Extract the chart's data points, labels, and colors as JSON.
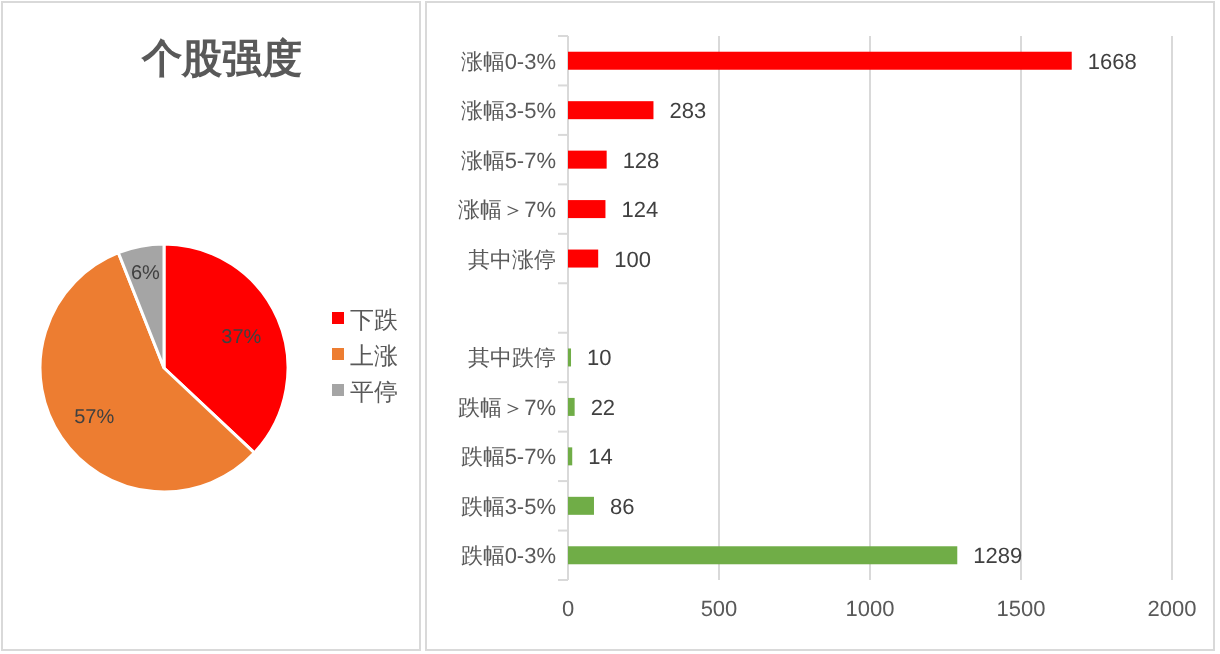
{
  "chart_data": [
    {
      "type": "pie",
      "title": "个股强度",
      "categories": [
        "下跌",
        "上涨",
        "平停"
      ],
      "values": [
        37,
        57,
        6
      ],
      "colors": [
        "#ff0000",
        "#ed7d31",
        "#a5a5a5"
      ],
      "value_labels": [
        "37%",
        "57%",
        "6%"
      ],
      "legend": "right"
    },
    {
      "type": "bar",
      "orientation": "horizontal",
      "categories": [
        "涨幅0-3%",
        "涨幅3-5%",
        "涨幅5-7%",
        "涨幅＞7%",
        "其中涨停",
        null,
        "其中跌停",
        "跌幅＞7%",
        "跌幅5-7%",
        "跌幅3-5%",
        "跌幅0-3%"
      ],
      "values": [
        1668,
        283,
        128,
        124,
        100,
        null,
        10,
        22,
        14,
        86,
        1289
      ],
      "colors": [
        "#ff0000",
        "#ff0000",
        "#ff0000",
        "#ff0000",
        "#ff0000",
        null,
        "#70ad47",
        "#70ad47",
        "#70ad47",
        "#70ad47",
        "#70ad47"
      ],
      "xlim": [
        0,
        2000
      ],
      "xticks": [
        0,
        500,
        1000,
        1500,
        2000
      ],
      "grid": "x",
      "data_labels": true
    }
  ]
}
